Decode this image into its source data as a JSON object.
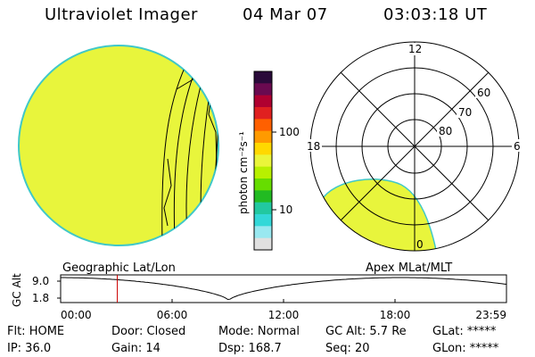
{
  "header": {
    "title": "Ultraviolet Imager",
    "date": "04 Mar 07",
    "time": "03:03:18 UT"
  },
  "colorbar": {
    "unit_label": "photon cm⁻²s⁻¹",
    "tick_labels": [
      "100",
      "10"
    ],
    "colors": [
      "#2a0a3a",
      "#6a0a50",
      "#b00030",
      "#e02020",
      "#ff6000",
      "#ff9a00",
      "#ffd800",
      "#eaf53a",
      "#b8f000",
      "#66dd00",
      "#22bb22",
      "#22c8a0",
      "#33d8d8",
      "#99e8f0",
      "#e0e0e0"
    ]
  },
  "disk_image": {
    "fill_color": "#e8f53c",
    "edge_color": "#40c8c8"
  },
  "polar_plot": {
    "mlt_labels": {
      "top": "12",
      "left": "18",
      "right": "6",
      "bottom": "0"
    },
    "lat_labels": [
      "60",
      "70",
      "80"
    ],
    "region_color": "#e8f53c"
  },
  "map_labels": {
    "left": "Geographic Lat/Lon",
    "right": "Apex MLat/MLT"
  },
  "altitude_plot": {
    "ylabel": "GC Alt",
    "ytick_top": "9.0",
    "ytick_bottom": "1.8",
    "xticks": [
      "00:00",
      "06:00",
      "12:00",
      "18:00",
      "23:59"
    ],
    "marker_time_hours": 3.05,
    "marker_color": "#cc0000"
  },
  "status": {
    "flt": "Flt: HOME",
    "ip": "IP: 36.0",
    "door": "Door: Closed",
    "gain": "Gain: 14",
    "mode": "Mode: Normal",
    "dsp": "Dsp:   168.7",
    "gc_alt": "GC Alt: 5.7 Re",
    "seq": "Seq: 20",
    "glat": "GLat: *****",
    "glon": "GLon: *****"
  }
}
